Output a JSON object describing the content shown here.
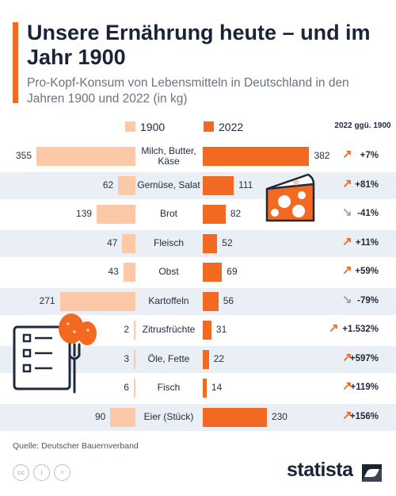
{
  "title": "Unsere Ernährung heute – und im Jahr 1900",
  "subtitle": "Pro-Kopf-Konsum von Lebensmitteln in Deutschland in den Jahren 1900 und 2022 (in kg)",
  "change_header": "2022 ggü. 1900",
  "source": "Quelle: Deutscher Bauernverband",
  "brand": "statista",
  "colors": {
    "y1900": "#fbc9a8",
    "y2022": "#f26a21",
    "accent": "#f26a21",
    "up_arrow": "#f26a21",
    "down_arrow": "#9aa3ae"
  },
  "icons": [
    "cheese-icon",
    "checklist-fork-icon",
    "potato-icon",
    "creative-commons-icons",
    "statista-logo-icon"
  ],
  "chart_data": {
    "type": "bar",
    "orientation": "horizontal-butterfly",
    "categories": [
      "Milch, Butter, Käse",
      "Gemüse, Salat",
      "Brot",
      "Fleisch",
      "Obst",
      "Kartoffeln",
      "Zitrusfrüchte",
      "Öle, Fette",
      "Fisch",
      "Eier (Stück)"
    ],
    "series": [
      {
        "name": "1900",
        "values": [
          355,
          62,
          139,
          47,
          43,
          271,
          2,
          3,
          6,
          90
        ]
      },
      {
        "name": "2022",
        "values": [
          382,
          111,
          82,
          52,
          69,
          56,
          31,
          22,
          14,
          230
        ]
      }
    ],
    "change_labels": [
      "+7%",
      "+81%",
      "-41%",
      "+11%",
      "+59%",
      "-79%",
      "+1.532%",
      "+597%",
      "+119%",
      "+156%"
    ],
    "change_direction": [
      "up",
      "up",
      "down",
      "up",
      "up",
      "down",
      "up",
      "up",
      "up",
      "up"
    ],
    "legend_position": "top",
    "grid": false
  }
}
